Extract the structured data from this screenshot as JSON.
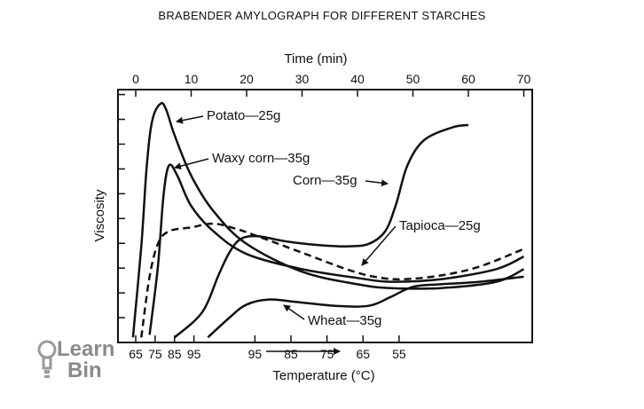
{
  "title": "BRABENDER AMYLOGRAPH FOR DIFFERENT STARCHES",
  "logo": {
    "line1": "Learn",
    "line2": "Bin",
    "icon": "lightbulb-icon"
  },
  "chart_data": {
    "type": "line",
    "title": "BRABENDER AMYLOGRAPH FOR DIFFERENT STARCHES",
    "top_axis": {
      "label": "Time (min)",
      "ticks": [
        0,
        10,
        20,
        30,
        40,
        50,
        60,
        70
      ],
      "range": [
        0,
        72
      ]
    },
    "bottom_axis": {
      "label": "Temperature (°C)",
      "ticks": [
        "65",
        "75",
        "85",
        "95",
        "95",
        "85",
        "75",
        "65",
        "55"
      ],
      "tick_times": [
        0,
        3.5,
        7,
        10.5,
        21.5,
        28,
        34.5,
        41,
        47.5
      ]
    },
    "ylabel": "Viscosity",
    "y_ticks_unlabeled": 10,
    "grid": false,
    "series": [
      {
        "name": "Potato—25g",
        "style": "solid",
        "points": [
          [
            -0.5,
            0.02
          ],
          [
            1,
            0.38
          ],
          [
            2,
            0.7
          ],
          [
            3,
            0.88
          ],
          [
            4.5,
            0.945
          ],
          [
            5.5,
            0.92
          ],
          [
            7,
            0.82
          ],
          [
            10,
            0.66
          ],
          [
            14,
            0.52
          ],
          [
            20,
            0.39
          ],
          [
            30,
            0.28
          ],
          [
            40,
            0.23
          ],
          [
            46,
            0.215
          ],
          [
            55,
            0.215
          ],
          [
            65,
            0.24
          ],
          [
            70,
            0.29
          ]
        ]
      },
      {
        "name": "Waxy corn—35g",
        "style": "solid",
        "points": [
          [
            2.5,
            0.03
          ],
          [
            4,
            0.3
          ],
          [
            5,
            0.58
          ],
          [
            6,
            0.7
          ],
          [
            7.5,
            0.66
          ],
          [
            10,
            0.54
          ],
          [
            14,
            0.44
          ],
          [
            20,
            0.35
          ],
          [
            30,
            0.29
          ],
          [
            40,
            0.255
          ],
          [
            46,
            0.24
          ],
          [
            55,
            0.25
          ],
          [
            65,
            0.29
          ],
          [
            70,
            0.34
          ]
        ]
      },
      {
        "name": "Corn—35g",
        "style": "solid",
        "points": [
          [
            7,
            0.02
          ],
          [
            12,
            0.12
          ],
          [
            15,
            0.27
          ],
          [
            17,
            0.36
          ],
          [
            19,
            0.41
          ],
          [
            22,
            0.42
          ],
          [
            27,
            0.4
          ],
          [
            33,
            0.385
          ],
          [
            38,
            0.38
          ],
          [
            42,
            0.39
          ],
          [
            45,
            0.44
          ],
          [
            47,
            0.55
          ],
          [
            49,
            0.7
          ],
          [
            52,
            0.8
          ],
          [
            57,
            0.85
          ],
          [
            60,
            0.86
          ]
        ]
      },
      {
        "name": "Tapioca—25g",
        "style": "dashed",
        "points": [
          [
            1,
            0.02
          ],
          [
            2.5,
            0.26
          ],
          [
            4,
            0.39
          ],
          [
            6,
            0.44
          ],
          [
            10,
            0.455
          ],
          [
            14,
            0.47
          ],
          [
            18,
            0.45
          ],
          [
            22,
            0.42
          ],
          [
            30,
            0.355
          ],
          [
            38,
            0.29
          ],
          [
            43,
            0.26
          ],
          [
            48,
            0.25
          ],
          [
            55,
            0.265
          ],
          [
            62,
            0.3
          ],
          [
            70,
            0.37
          ]
        ]
      },
      {
        "name": "Wheat—35g",
        "style": "solid",
        "points": [
          [
            13,
            0.02
          ],
          [
            17,
            0.1
          ],
          [
            20,
            0.15
          ],
          [
            24,
            0.17
          ],
          [
            29,
            0.16
          ],
          [
            36,
            0.145
          ],
          [
            42,
            0.145
          ],
          [
            46,
            0.18
          ],
          [
            50,
            0.22
          ],
          [
            55,
            0.23
          ],
          [
            62,
            0.24
          ],
          [
            70,
            0.26
          ]
        ]
      }
    ],
    "annotations": [
      {
        "series": "Potato—25g",
        "label": "Potato—25g"
      },
      {
        "series": "Waxy corn—35g",
        "label": "Waxy corn—35g"
      },
      {
        "series": "Corn—35g",
        "label": "Corn—35g"
      },
      {
        "series": "Tapioca—25g",
        "label": "Tapioca—25g"
      },
      {
        "series": "Wheat—35g",
        "label": "Wheat—35g"
      }
    ]
  }
}
